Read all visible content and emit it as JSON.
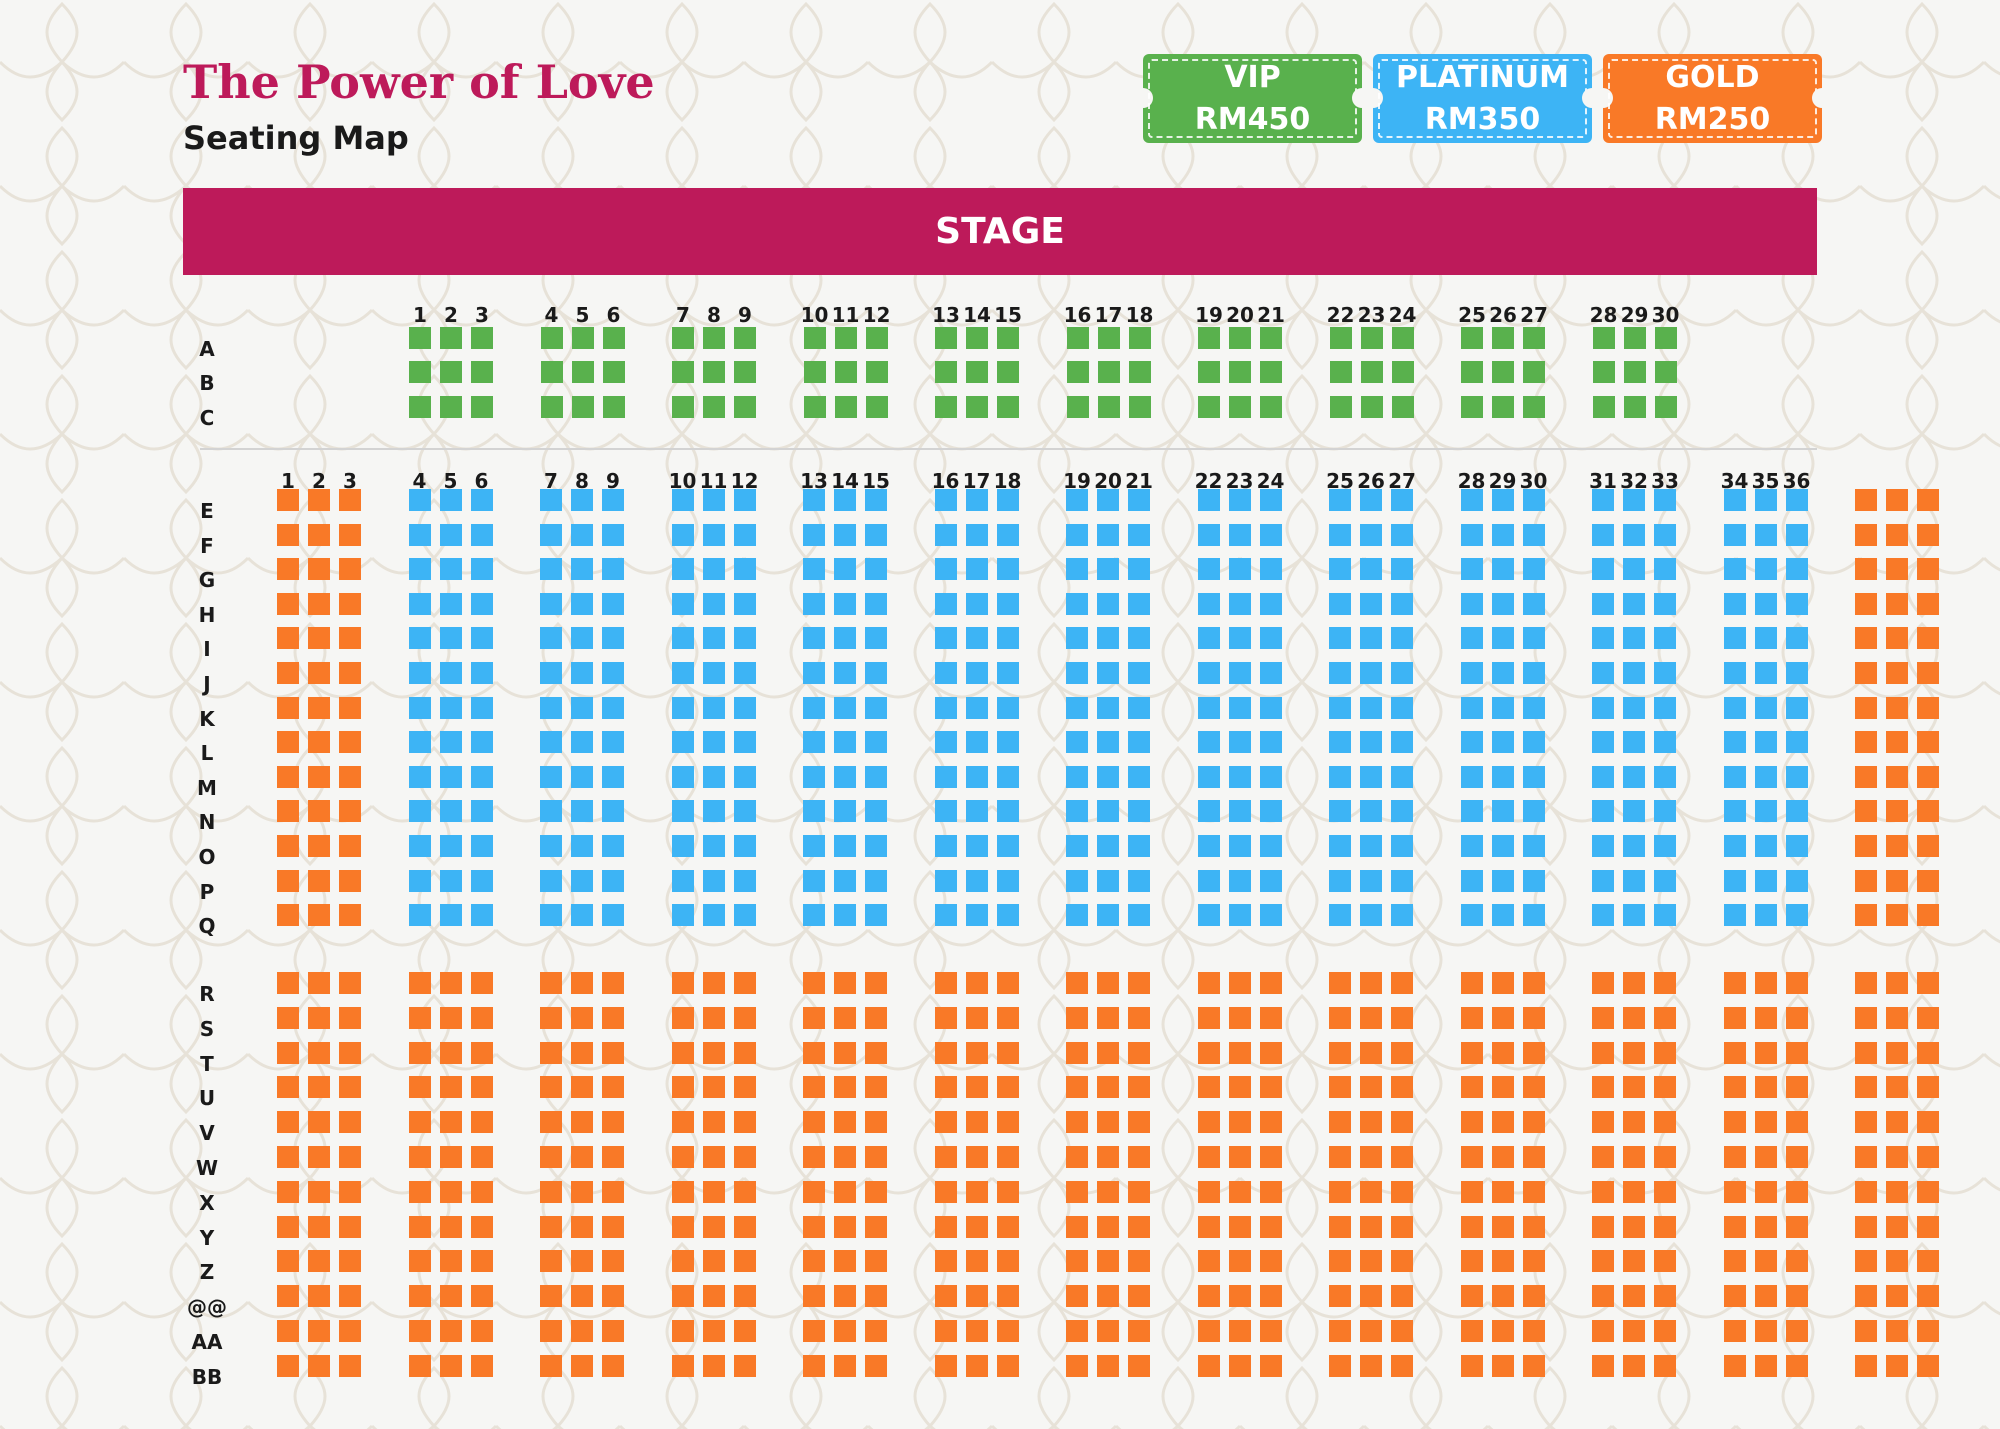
{
  "header": {
    "title": "The Power of Love",
    "subtitle": "Seating Map"
  },
  "tickets": [
    {
      "tier": "VIP",
      "price": "RM450",
      "color": "#59b14d"
    },
    {
      "tier": "PLATINUM",
      "price": "RM350",
      "color": "#3db4f5"
    },
    {
      "tier": "GOLD",
      "price": "RM250",
      "color": "#f97927"
    }
  ],
  "stage": {
    "label": "STAGE",
    "color": "#bd1a5a"
  },
  "sections": [
    {
      "name": "front",
      "seat_numbers": [
        "1",
        "2",
        "3",
        "4",
        "5",
        "6",
        "7",
        "8",
        "9",
        "10",
        "11",
        "12",
        "13",
        "14",
        "15",
        "16",
        "17",
        "18",
        "19",
        "20",
        "21",
        "22",
        "23",
        "24",
        "25",
        "26",
        "27",
        "28",
        "29",
        "30"
      ],
      "rows": [
        "A",
        "B",
        "C"
      ],
      "tier_by_block": [
        "vip",
        "vip",
        "vip",
        "vip",
        "vip",
        "vip",
        "vip",
        "vip",
        "vip",
        "vip"
      ]
    },
    {
      "name": "middle",
      "seat_numbers": [
        "1",
        "2",
        "3",
        "4",
        "5",
        "6",
        "7",
        "8",
        "9",
        "10",
        "11",
        "12",
        "13",
        "14",
        "15",
        "16",
        "17",
        "18",
        "19",
        "20",
        "21",
        "22",
        "23",
        "24",
        "25",
        "26",
        "27",
        "28",
        "29",
        "30",
        "31",
        "32",
        "33",
        "34",
        "35",
        "36"
      ],
      "rows": [
        "E",
        "F",
        "G",
        "H",
        "I",
        "J",
        "K",
        "L",
        "M",
        "N",
        "O",
        "P",
        "Q"
      ],
      "tier_by_block": [
        "gold",
        "platinum",
        "platinum",
        "platinum",
        "platinum",
        "platinum",
        "platinum",
        "platinum",
        "platinum",
        "platinum",
        "platinum",
        "platinum",
        "gold"
      ]
    },
    {
      "name": "rear",
      "rows": [
        "R",
        "S",
        "T",
        "U",
        "V",
        "W",
        "X",
        "Y",
        "Z",
        "@@",
        "AA",
        "BB"
      ],
      "tier_by_block": [
        "gold",
        "gold",
        "gold",
        "gold",
        "gold",
        "gold",
        "gold",
        "gold",
        "gold",
        "gold",
        "gold",
        "gold",
        "gold"
      ]
    }
  ]
}
